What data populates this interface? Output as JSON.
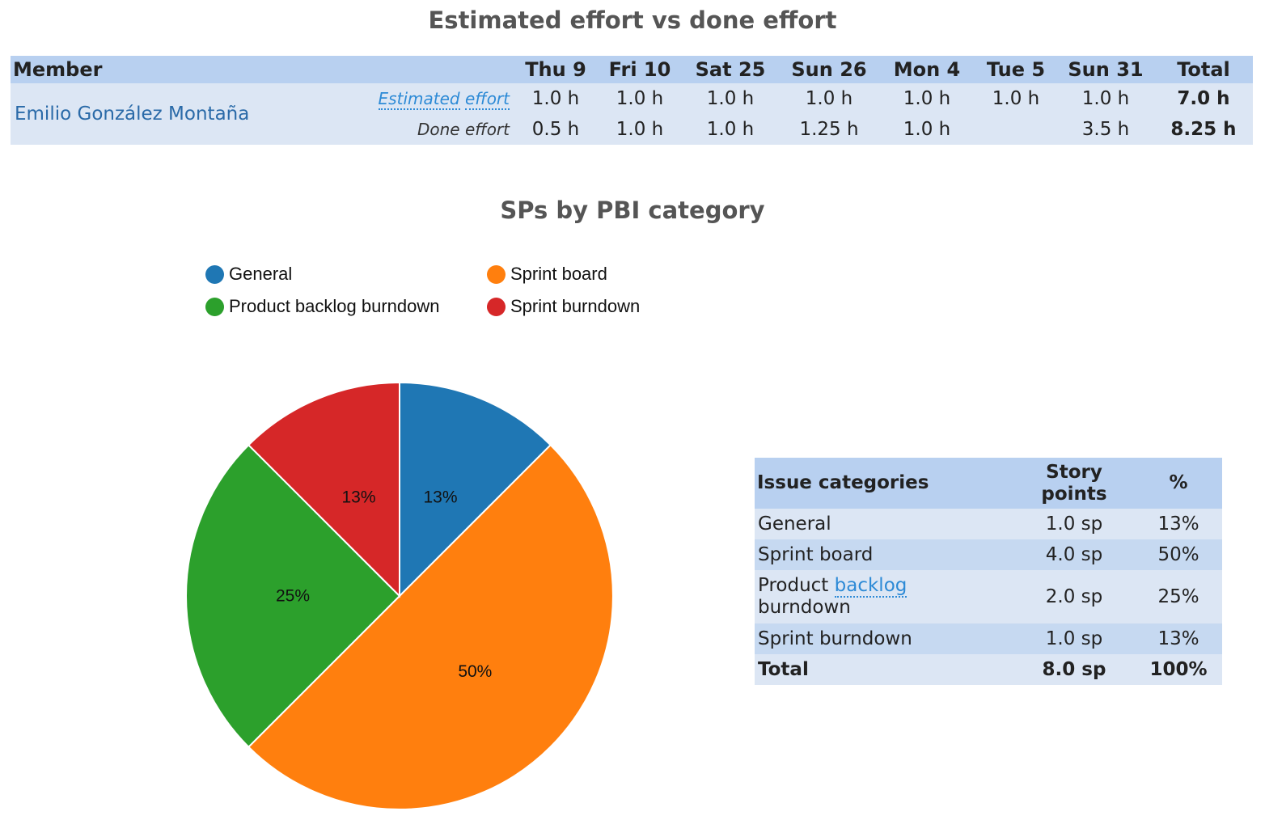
{
  "effort": {
    "title": "Estimated effort vs done effort",
    "header": {
      "member": "Member",
      "days": [
        "Thu 9",
        "Fri 10",
        "Sat 25",
        "Sun 26",
        "Mon 4",
        "Tue 5",
        "Sun 31"
      ],
      "total": "Total"
    },
    "member_name": "Emilio González Montaña",
    "estimated": {
      "label_part1": "Estimated",
      "label_part2": "effort",
      "values": [
        "1.0 h",
        "1.0 h",
        "1.0 h",
        "1.0 h",
        "1.0 h",
        "1.0 h",
        "1.0 h"
      ],
      "total": "7.0 h"
    },
    "done": {
      "label": "Done effort",
      "values": [
        "0.5 h",
        "1.0 h",
        "1.0 h",
        "1.25 h",
        "1.0 h",
        "",
        "3.5 h"
      ],
      "total": "8.25 h"
    }
  },
  "sp_section": {
    "title": "SPs by PBI category"
  },
  "chart_data": {
    "type": "pie",
    "title": "SPs by PBI category",
    "categories": [
      "General",
      "Sprint board",
      "Product backlog burndown",
      "Sprint burndown"
    ],
    "values": [
      1.0,
      4.0,
      2.0,
      1.0
    ],
    "labels": [
      "13%",
      "50%",
      "25%",
      "13%"
    ],
    "colors": [
      "#1f77b4",
      "#ff7f0e",
      "#2ca02c",
      "#d62728"
    ],
    "legend_position": "top-left"
  },
  "categories_table": {
    "header": {
      "category": "Issue categories",
      "story_points_line1": "Story",
      "story_points_line2": "points",
      "percent": "%"
    },
    "rows": [
      {
        "name": "General",
        "points": "1.0 sp",
        "percent": "13%"
      },
      {
        "name": "Sprint board",
        "points": "4.0 sp",
        "percent": "50%"
      },
      {
        "name_part1": "Product",
        "name_link": "backlog",
        "name_part2": "burndown",
        "points": "2.0 sp",
        "percent": "25%"
      },
      {
        "name": "Sprint burndown",
        "points": "1.0 sp",
        "percent": "13%"
      }
    ],
    "total": {
      "name": "Total",
      "points": "8.0 sp",
      "percent": "100%"
    }
  }
}
